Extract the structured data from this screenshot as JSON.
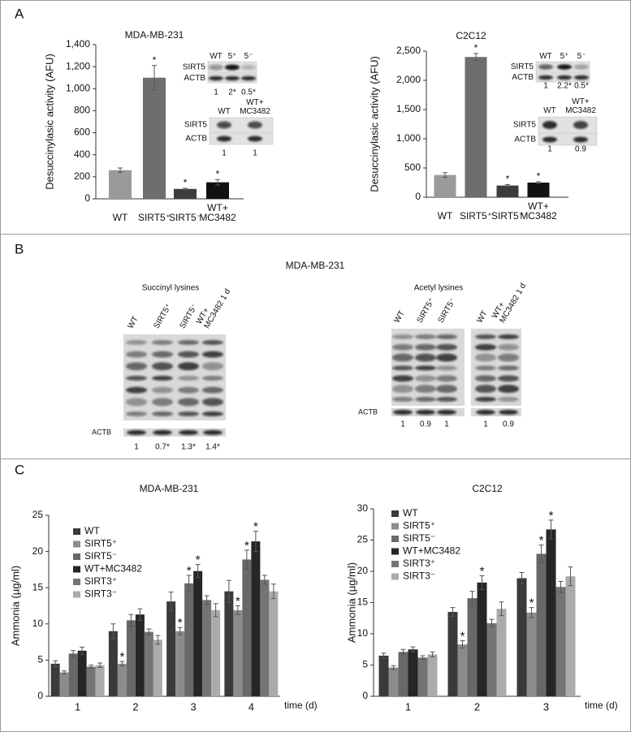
{
  "panel_labels": [
    "A",
    "B",
    "C"
  ],
  "chart_data": [
    {
      "type": "bar",
      "title": "MDA-MB-231",
      "ylabel": "Desuccinylasic activity (AFU)",
      "categories": [
        "WT",
        "SIRT5⁺",
        "SIRT5⁻",
        "WT+\nMC3482"
      ],
      "values": [
        260,
        1100,
        90,
        150
      ],
      "errors": [
        20,
        110,
        6,
        25
      ],
      "marks": [
        null,
        "*",
        "*",
        "*"
      ],
      "colors": [
        "#9a9a9a",
        "#6e6e6e",
        "#3c3c3c",
        "#111111"
      ],
      "ylim": [
        0,
        1400
      ],
      "yticks": [
        0,
        200,
        400,
        600,
        800,
        {
          "value": 1000,
          "label": "1,000"
        },
        {
          "value": 1200,
          "label": "1,200"
        },
        {
          "value": 1400,
          "label": "1,400"
        }
      ]
    },
    {
      "type": "bar",
      "title": "C2C12",
      "ylabel": "Desuccinylasic activity (AFU)",
      "categories": [
        "WT",
        "SIRT5⁺",
        "SIRT5⁻",
        "WT+\nMC3482"
      ],
      "values": [
        380,
        2400,
        200,
        250
      ],
      "errors": [
        40,
        60,
        15,
        15
      ],
      "marks": [
        null,
        "*",
        "*",
        "*"
      ],
      "colors": [
        "#9a9a9a",
        "#6e6e6e",
        "#3c3c3c",
        "#111111"
      ],
      "ylim": [
        0,
        2500
      ],
      "yticks": [
        0,
        500,
        {
          "value": 1000,
          "label": "1,000"
        },
        {
          "value": 1500,
          "label": "1,500"
        },
        {
          "value": 2000,
          "label": "2,000"
        },
        {
          "value": 2500,
          "label": "2,500"
        }
      ]
    },
    {
      "type": "grouped_bar",
      "title": "MDA-MB-231",
      "ylabel": "Ammonia (µg/ml)",
      "xlabel": "time (d)",
      "categories": [
        "1",
        "2",
        "3",
        "4"
      ],
      "legend": "upper left",
      "ylim": [
        0,
        25
      ],
      "yticks": [
        0,
        5,
        10,
        15,
        20,
        25
      ],
      "series": [
        {
          "name": "WT",
          "color": "#3a3a3a",
          "values": [
            4.5,
            9.0,
            13.1,
            14.5
          ],
          "errors": [
            0.4,
            1.0,
            1.3,
            1.5
          ],
          "marks": [
            null,
            null,
            null,
            null
          ]
        },
        {
          "name": "SIRT5⁺",
          "color": "#8c8c8c",
          "values": [
            3.3,
            4.5,
            9.0,
            11.9
          ],
          "errors": [
            0.2,
            0.3,
            0.5,
            0.6
          ],
          "marks": [
            null,
            "*",
            "*",
            "*"
          ]
        },
        {
          "name": "SIRT5⁻",
          "color": "#686868",
          "values": [
            5.9,
            10.5,
            15.6,
            18.9
          ],
          "errors": [
            0.4,
            0.8,
            1.1,
            1.3
          ],
          "marks": [
            null,
            null,
            "*",
            "*"
          ]
        },
        {
          "name": "WT+MC3482",
          "color": "#262626",
          "values": [
            6.3,
            11.3,
            17.3,
            21.4
          ],
          "errors": [
            0.5,
            0.8,
            0.9,
            1.4
          ],
          "marks": [
            null,
            null,
            "*",
            "*"
          ]
        },
        {
          "name": "SIRT3⁺",
          "color": "#747474",
          "values": [
            4.1,
            8.9,
            13.3,
            16.1
          ],
          "errors": [
            0.2,
            0.4,
            0.6,
            0.6
          ],
          "marks": [
            null,
            null,
            null,
            null
          ]
        },
        {
          "name": "SIRT3⁻",
          "color": "#ababab",
          "values": [
            4.3,
            7.8,
            11.9,
            14.5
          ],
          "errors": [
            0.3,
            0.6,
            0.9,
            1.0
          ],
          "marks": [
            null,
            null,
            null,
            null
          ]
        }
      ]
    },
    {
      "type": "grouped_bar",
      "title": "C2C12",
      "ylabel": "Ammonia (µg/ml)",
      "xlabel": "time (d)",
      "categories": [
        "1",
        "2",
        "3"
      ],
      "legend": "upper left",
      "ylim": [
        0,
        30
      ],
      "yticks": [
        0,
        5,
        10,
        15,
        20,
        25,
        30
      ],
      "series": [
        {
          "name": "WT",
          "color": "#3a3a3a",
          "values": [
            6.5,
            13.5,
            18.9
          ],
          "errors": [
            0.4,
            0.7,
            0.9
          ],
          "marks": [
            null,
            null,
            null
          ]
        },
        {
          "name": "SIRT5⁺",
          "color": "#8c8c8c",
          "values": [
            4.6,
            8.3,
            13.4
          ],
          "errors": [
            0.3,
            0.6,
            0.8
          ],
          "marks": [
            null,
            "*",
            "*"
          ]
        },
        {
          "name": "SIRT5⁻",
          "color": "#686868",
          "values": [
            7.1,
            15.7,
            22.8
          ],
          "errors": [
            0.4,
            1.1,
            1.4
          ],
          "marks": [
            null,
            null,
            "*"
          ]
        },
        {
          "name": "WT+MC3482",
          "color": "#262626",
          "values": [
            7.5,
            18.2,
            26.7
          ],
          "errors": [
            0.4,
            1.1,
            1.5
          ],
          "marks": [
            null,
            "*",
            "*"
          ]
        },
        {
          "name": "SIRT3⁺",
          "color": "#747474",
          "values": [
            6.2,
            11.7,
            17.5
          ],
          "errors": [
            0.3,
            0.6,
            0.9
          ],
          "marks": [
            null,
            null,
            null
          ]
        },
        {
          "name": "SIRT3⁻",
          "color": "#ababab",
          "values": [
            6.7,
            14.0,
            19.2
          ],
          "errors": [
            0.4,
            1.1,
            1.5
          ],
          "marks": [
            null,
            null,
            null
          ]
        }
      ]
    }
  ],
  "blots": [
    {
      "lanes": [
        "WT",
        "5⁺",
        "5⁻"
      ],
      "rows": [
        "SIRT5",
        "ACTB"
      ],
      "quantification": [
        "1",
        "2*",
        "0.5*"
      ]
    },
    {
      "lanes": [
        "WT",
        "WT+\nMC3482"
      ],
      "rows": [
        "SIRT5",
        "ACTB"
      ],
      "quantification": [
        "1",
        "1"
      ]
    },
    {
      "lanes": [
        "WT",
        "5⁺",
        "5⁻"
      ],
      "rows": [
        "SIRT5",
        "ACTB"
      ],
      "quantification": [
        "1",
        "2.2*",
        "0.5*"
      ]
    },
    {
      "lanes": [
        "WT",
        "WT+\nMC3482"
      ],
      "rows": [
        "SIRT5",
        "ACTB"
      ],
      "quantification": [
        "1",
        "0.9"
      ]
    }
  ],
  "panel_b": {
    "title": "MDA-MB-231",
    "blots": [
      {
        "title": "Succinyl lysines",
        "lanes": [
          "WT",
          "SIRT5⁺",
          "SIRT5⁻",
          "WT+\nMC3482 1 d"
        ],
        "loading_control": "ACTB",
        "quantification": [
          "1",
          "0.7*",
          "1.3*",
          "1.4*"
        ]
      },
      {
        "title": "Acetyl lysines",
        "lanes": [
          "WT",
          "SIRT5⁺",
          "SIRT5⁻",
          "WT",
          "WT+\nMC3482 1 d"
        ],
        "loading_control": "ACTB",
        "quantification": [
          "1",
          "0.9",
          "1",
          "1",
          "0.9"
        ]
      }
    ]
  }
}
